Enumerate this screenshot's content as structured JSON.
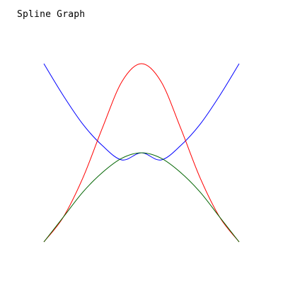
{
  "chart_data": {
    "type": "line",
    "title": "Spline Graph",
    "xlabel": "",
    "ylabel": "",
    "xlim": [
      -1,
      1
    ],
    "ylim": [
      0,
      1
    ],
    "grid": false,
    "legend": "none",
    "series": [
      {
        "color": "#0000ff",
        "x": [
          -1.0,
          -0.8,
          -0.6,
          -0.4,
          -0.2,
          0.0,
          0.2,
          0.4,
          0.6,
          0.8,
          1.0
        ],
        "values": [
          1.0,
          0.82,
          0.66,
          0.54,
          0.46,
          0.5,
          0.46,
          0.54,
          0.66,
          0.82,
          1.0
        ]
      },
      {
        "color": "#ff0000",
        "x": [
          -1.0,
          -0.8,
          -0.6,
          -0.4,
          -0.2,
          0.0,
          0.2,
          0.4,
          0.6,
          0.8,
          1.0
        ],
        "values": [
          0.0,
          0.14,
          0.36,
          0.64,
          0.9,
          1.0,
          0.9,
          0.64,
          0.36,
          0.14,
          0.0
        ]
      },
      {
        "color": "#006400",
        "x": [
          -1.0,
          -0.8,
          -0.6,
          -0.4,
          -0.2,
          0.0,
          0.2,
          0.4,
          0.6,
          0.8,
          1.0
        ],
        "values": [
          0.0,
          0.14,
          0.28,
          0.39,
          0.47,
          0.5,
          0.47,
          0.39,
          0.28,
          0.14,
          0.0
        ]
      }
    ]
  }
}
